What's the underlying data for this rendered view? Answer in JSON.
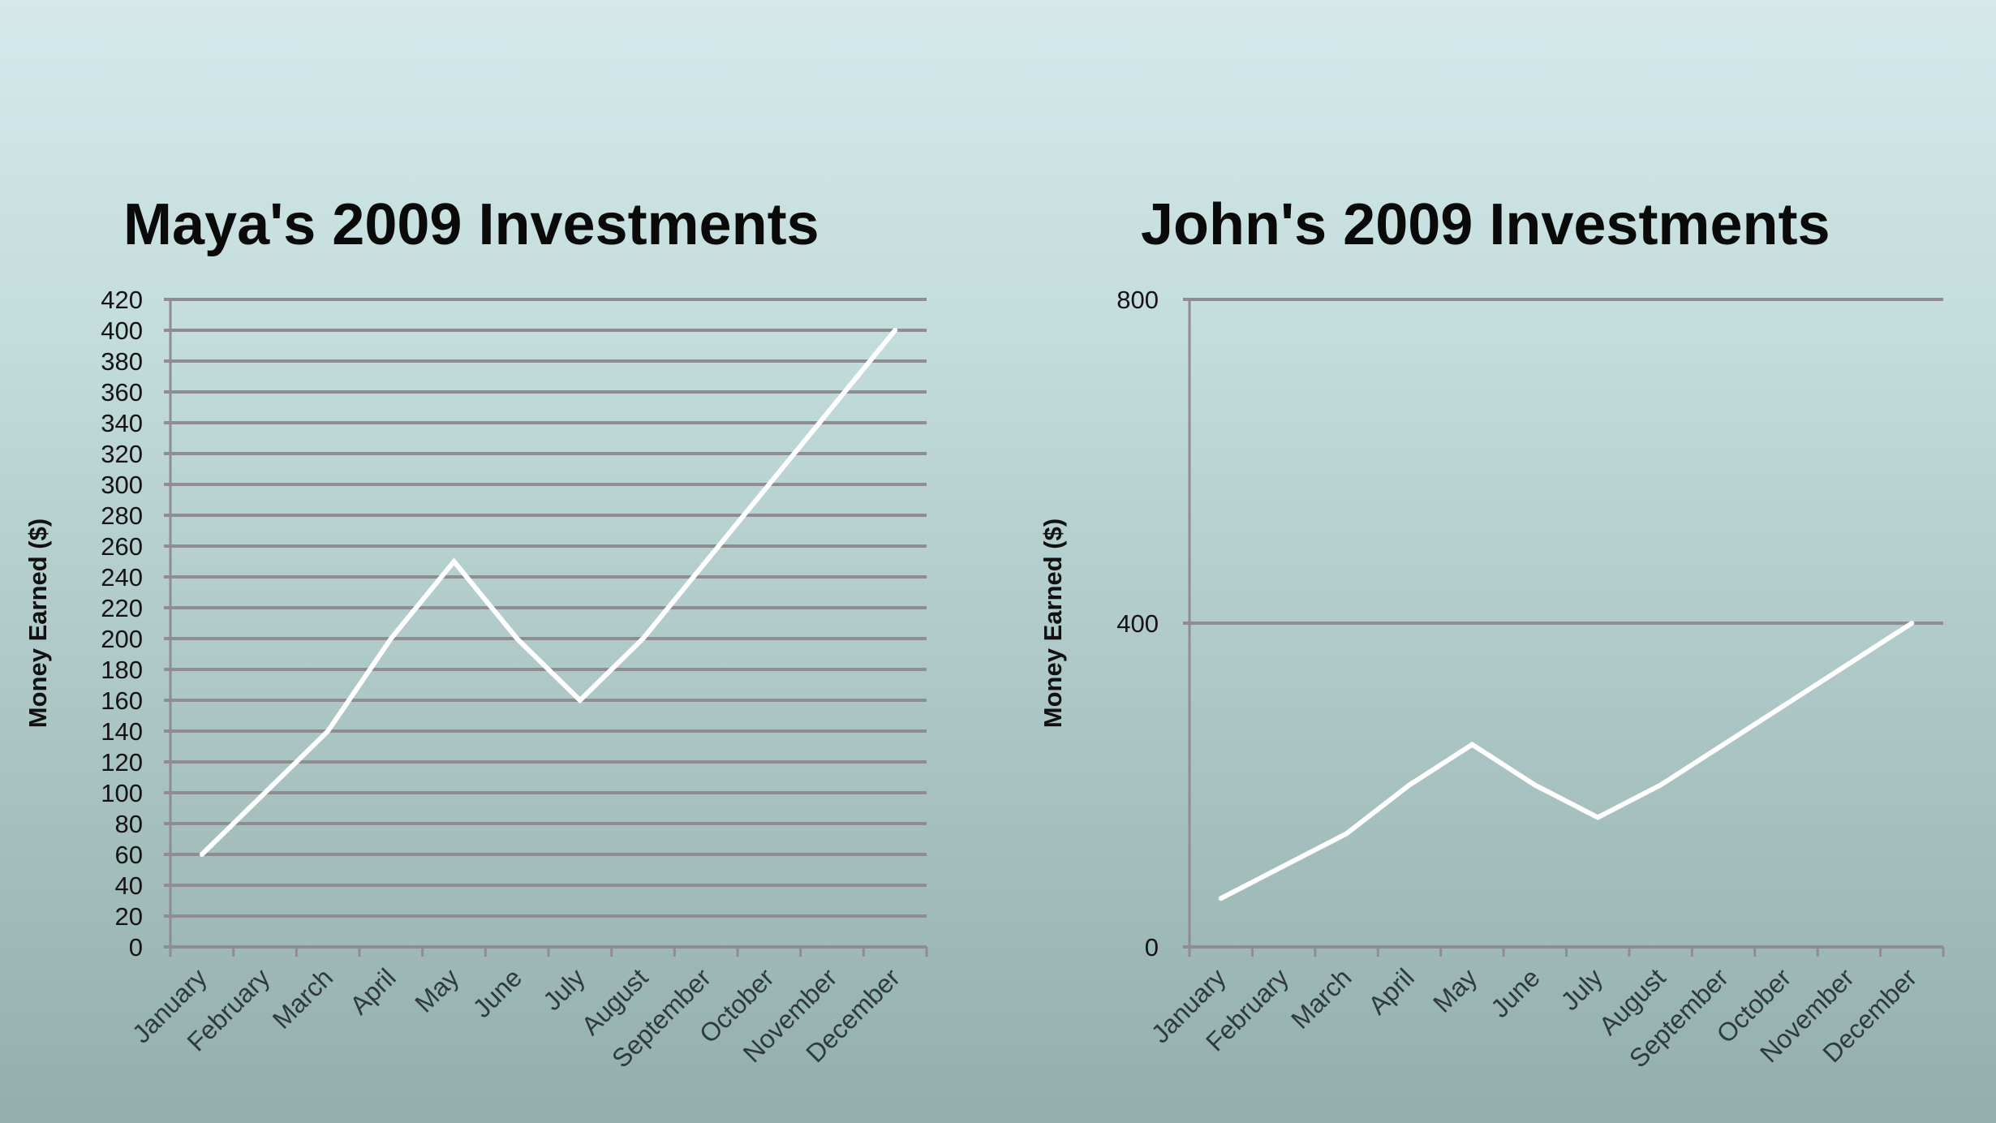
{
  "chart_data": [
    {
      "type": "line",
      "title": "Maya's 2009 Investments",
      "xlabel": "",
      "ylabel": "Money Earned ($)",
      "categories": [
        "January",
        "February",
        "March",
        "April",
        "May",
        "June",
        "July",
        "August",
        "September",
        "October",
        "November",
        "December"
      ],
      "series": [
        {
          "name": "Maya",
          "values": [
            60,
            100,
            140,
            200,
            250,
            200,
            160,
            200,
            250,
            300,
            350,
            400
          ],
          "color": "#ffffff"
        }
      ],
      "ylim": [
        0,
        420
      ],
      "yticks": [
        0,
        20,
        40,
        60,
        80,
        100,
        120,
        140,
        160,
        180,
        200,
        220,
        240,
        260,
        280,
        300,
        320,
        340,
        360,
        380,
        400,
        420
      ],
      "grid": true,
      "legend": "none"
    },
    {
      "type": "line",
      "title": "John's 2009 Investments",
      "xlabel": "",
      "ylabel": "Money Earned ($)",
      "categories": [
        "January",
        "February",
        "March",
        "April",
        "May",
        "June",
        "July",
        "August",
        "September",
        "October",
        "November",
        "December"
      ],
      "series": [
        {
          "name": "John",
          "values": [
            60,
            100,
            140,
            200,
            250,
            200,
            160,
            200,
            250,
            300,
            350,
            400
          ],
          "color": "#ffffff"
        }
      ],
      "ylim": [
        0,
        800
      ],
      "yticks": [
        0,
        400,
        800
      ],
      "grid": true,
      "legend": "none"
    }
  ],
  "colors": {
    "background_top": "#d5e9eb",
    "background_bottom": "#93afac",
    "gridline": "#8f8d92",
    "line": "#ffffff",
    "title": "#0a0a0a"
  }
}
